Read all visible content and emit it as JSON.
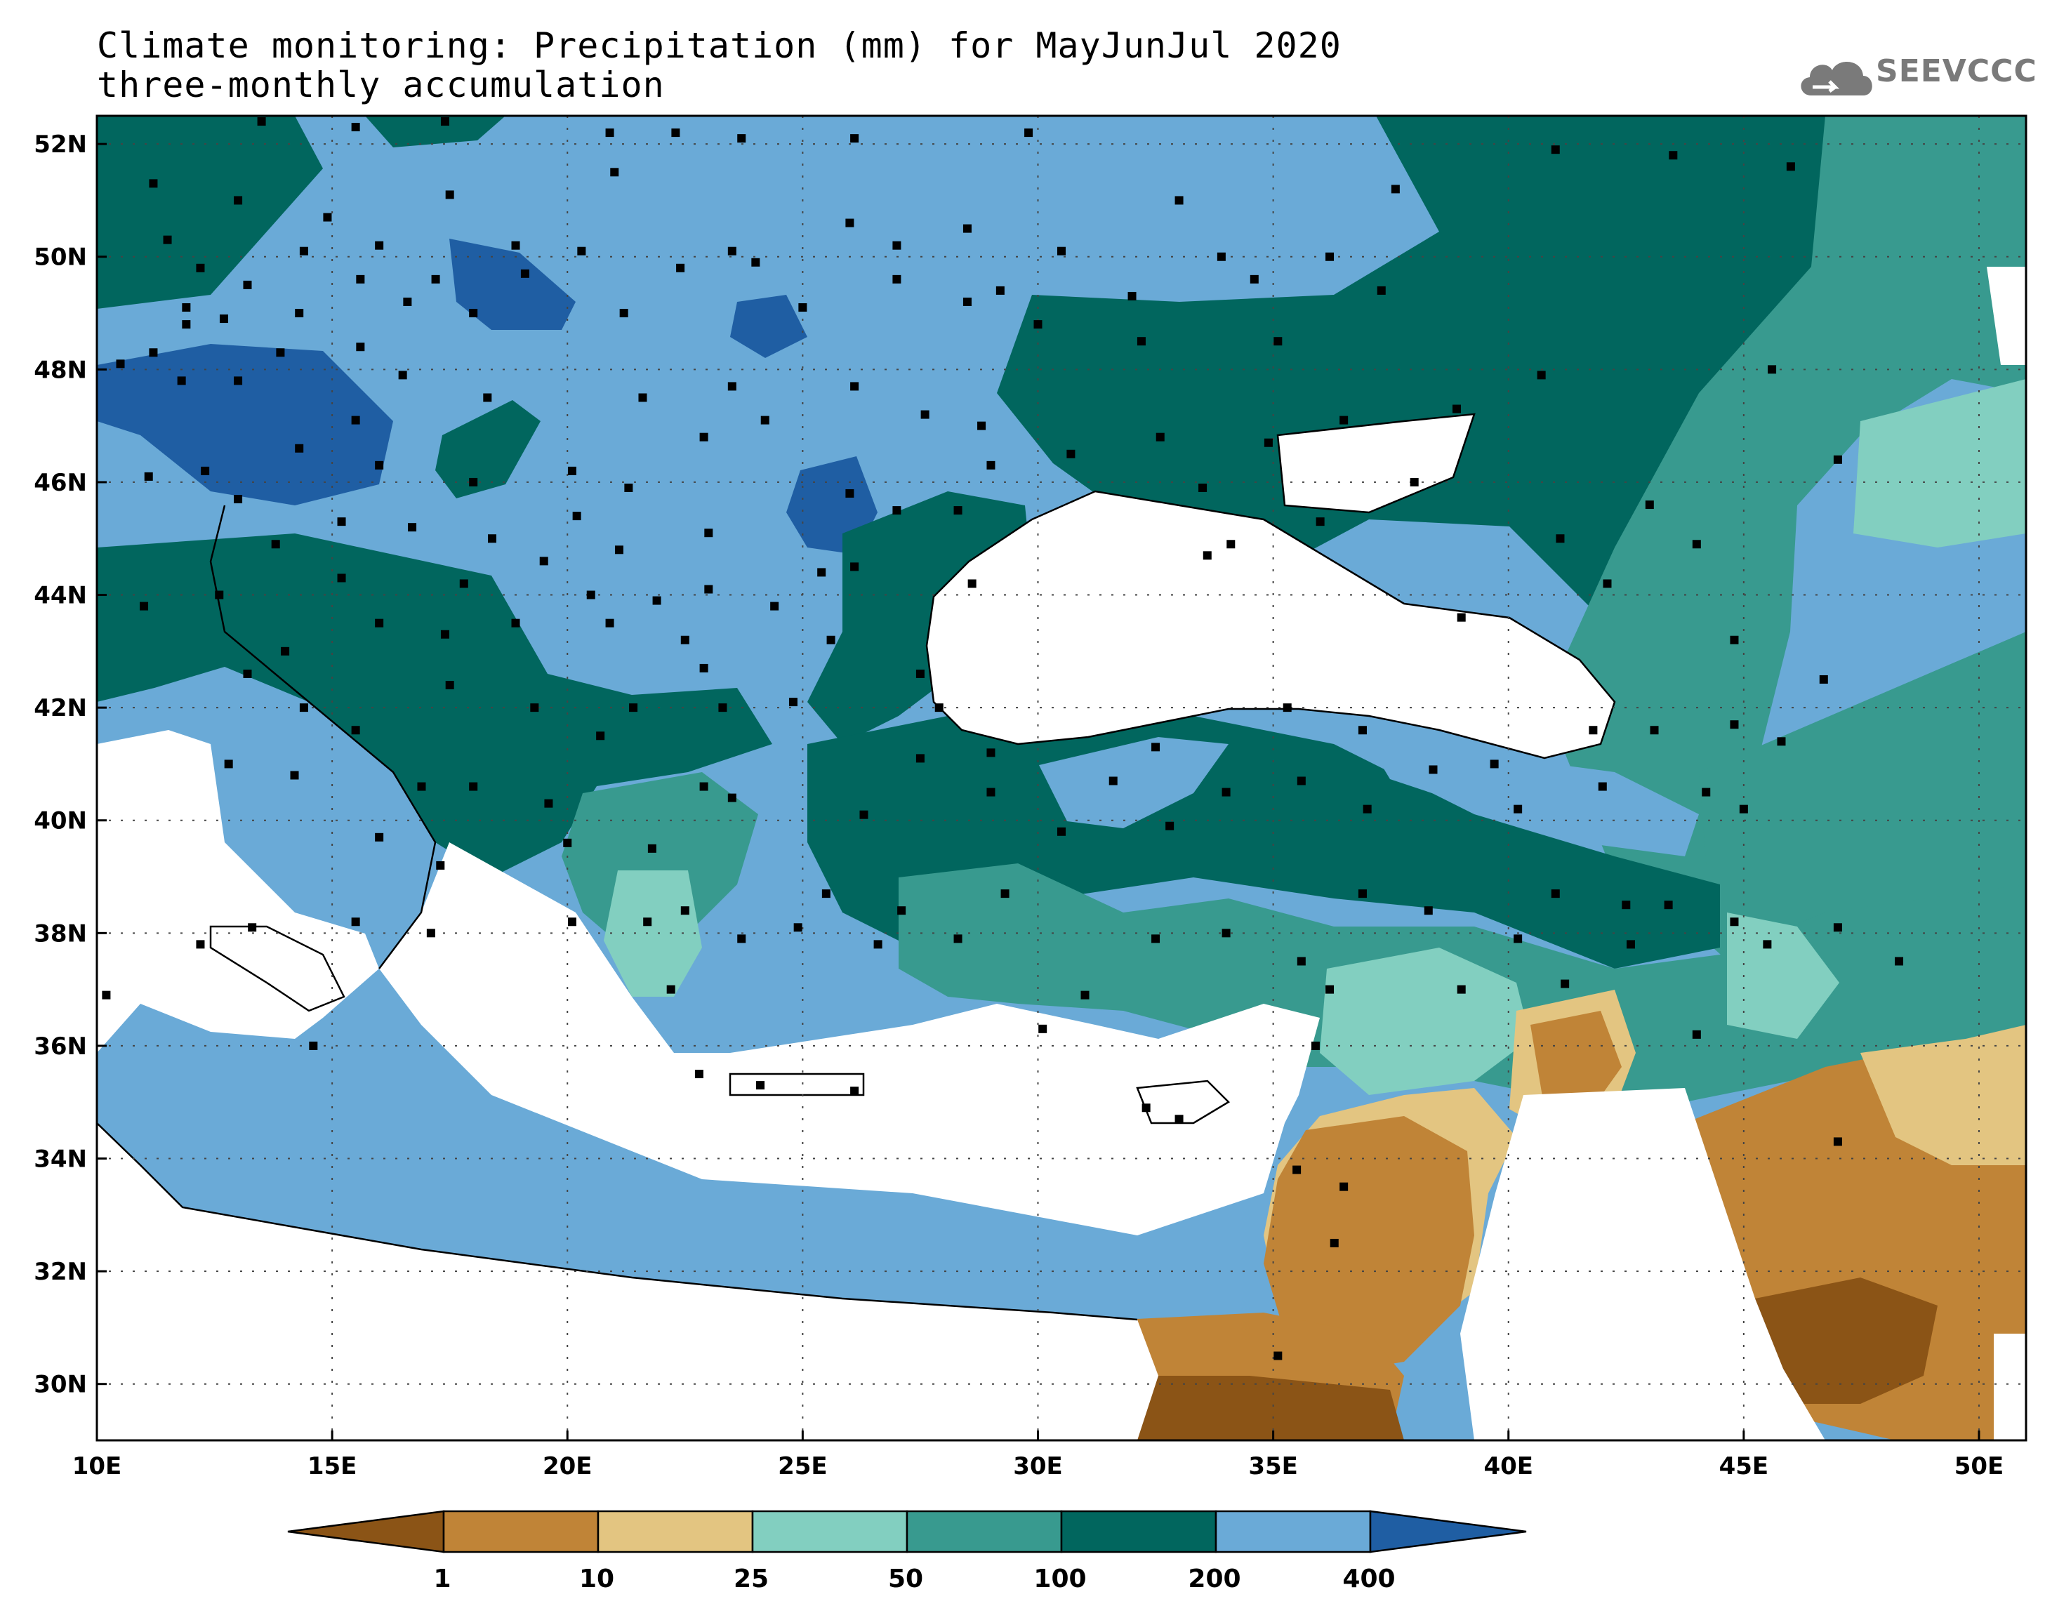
{
  "title_line1": "Climate monitoring: Precipitation (mm) for MayJunJul 2020",
  "title_line2": "three-monthly accumulation",
  "logo": {
    "text": "SEEVCCC",
    "icon": "cloud-icon"
  },
  "map": {
    "extent": {
      "lon": [
        10,
        51
      ],
      "lat": [
        29,
        52.5
      ]
    },
    "x_ticks": [
      {
        "value": 10,
        "label": "10E"
      },
      {
        "value": 15,
        "label": "15E"
      },
      {
        "value": 20,
        "label": "20E"
      },
      {
        "value": 25,
        "label": "25E"
      },
      {
        "value": 30,
        "label": "30E"
      },
      {
        "value": 35,
        "label": "35E"
      },
      {
        "value": 40,
        "label": "40E"
      },
      {
        "value": 45,
        "label": "45E"
      },
      {
        "value": 50,
        "label": "50E"
      }
    ],
    "y_ticks": [
      {
        "value": 30,
        "label": "30N"
      },
      {
        "value": 32,
        "label": "32N"
      },
      {
        "value": 34,
        "label": "34N"
      },
      {
        "value": 36,
        "label": "36N"
      },
      {
        "value": 38,
        "label": "38N"
      },
      {
        "value": 40,
        "label": "40N"
      },
      {
        "value": 42,
        "label": "42N"
      },
      {
        "value": 44,
        "label": "44N"
      },
      {
        "value": 46,
        "label": "46N"
      },
      {
        "value": 48,
        "label": "48N"
      },
      {
        "value": 50,
        "label": "50N"
      },
      {
        "value": 52,
        "label": "52N"
      }
    ],
    "grid": "dotted"
  },
  "colorbar": {
    "unit": "mm",
    "labels": [
      "1",
      "10",
      "25",
      "50",
      "100",
      "200",
      "400"
    ],
    "colors": [
      "#8b5416",
      "#c08437",
      "#e3c581",
      "#82cfc0",
      "#389a8f",
      "#01665e",
      "#6aaad7",
      "#1f5ea3"
    ]
  },
  "stations": [
    [
      13.5,
      52.4
    ],
    [
      15.5,
      52.3
    ],
    [
      17.4,
      52.4
    ],
    [
      20.9,
      52.2
    ],
    [
      22.3,
      52.2
    ],
    [
      23.7,
      52.1
    ],
    [
      26.1,
      52.1
    ],
    [
      29.8,
      52.2
    ],
    [
      11.2,
      51.3
    ],
    [
      13.0,
      51.0
    ],
    [
      14.9,
      50.7
    ],
    [
      17.5,
      51.1
    ],
    [
      21.0,
      51.5
    ],
    [
      26.0,
      50.6
    ],
    [
      27.0,
      50.2
    ],
    [
      33.0,
      51.0
    ],
    [
      37.6,
      51.2
    ],
    [
      41.0,
      51.9
    ],
    [
      43.5,
      51.8
    ],
    [
      46.0,
      51.6
    ],
    [
      11.5,
      50.3
    ],
    [
      14.4,
      50.1
    ],
    [
      16.0,
      50.2
    ],
    [
      18.9,
      50.2
    ],
    [
      20.3,
      50.1
    ],
    [
      23.5,
      50.1
    ],
    [
      28.5,
      50.5
    ],
    [
      30.5,
      50.1
    ],
    [
      33.9,
      50.0
    ],
    [
      36.2,
      50.0
    ],
    [
      12.2,
      49.8
    ],
    [
      13.2,
      49.5
    ],
    [
      15.6,
      49.6
    ],
    [
      17.2,
      49.6
    ],
    [
      19.1,
      49.7
    ],
    [
      22.4,
      49.8
    ],
    [
      24.0,
      49.9
    ],
    [
      27.0,
      49.6
    ],
    [
      29.2,
      49.4
    ],
    [
      32.0,
      49.3
    ],
    [
      34.6,
      49.6
    ],
    [
      37.3,
      49.4
    ],
    [
      11.9,
      49.1
    ],
    [
      12.7,
      48.9
    ],
    [
      14.3,
      49.0
    ],
    [
      16.6,
      49.2
    ],
    [
      18.0,
      49.0
    ],
    [
      21.2,
      49.0
    ],
    [
      25.0,
      49.1
    ],
    [
      28.5,
      49.2
    ],
    [
      30.0,
      48.8
    ],
    [
      32.2,
      48.5
    ],
    [
      35.1,
      48.5
    ],
    [
      13.9,
      48.3
    ],
    [
      15.6,
      48.4
    ],
    [
      11.8,
      47.8
    ],
    [
      13.0,
      47.8
    ],
    [
      15.5,
      47.1
    ],
    [
      16.5,
      47.9
    ],
    [
      18.3,
      47.5
    ],
    [
      21.6,
      47.5
    ],
    [
      26.1,
      47.7
    ],
    [
      23.5,
      47.7
    ],
    [
      24.2,
      47.1
    ],
    [
      27.6,
      47.2
    ],
    [
      28.8,
      47.0
    ],
    [
      30.7,
      46.5
    ],
    [
      32.6,
      46.8
    ],
    [
      34.9,
      46.7
    ],
    [
      36.5,
      47.1
    ],
    [
      38.9,
      47.3
    ],
    [
      40.7,
      47.9
    ],
    [
      45.6,
      48.0
    ],
    [
      11.1,
      46.1
    ],
    [
      12.3,
      46.2
    ],
    [
      14.3,
      46.6
    ],
    [
      16.0,
      46.3
    ],
    [
      18.0,
      46.0
    ],
    [
      20.1,
      46.2
    ],
    [
      21.3,
      45.9
    ],
    [
      22.9,
      46.8
    ],
    [
      26.0,
      45.8
    ],
    [
      28.3,
      45.5
    ],
    [
      29.0,
      46.3
    ],
    [
      33.5,
      45.9
    ],
    [
      34.1,
      44.9
    ],
    [
      36.0,
      45.3
    ],
    [
      38.0,
      46.0
    ],
    [
      41.1,
      45.0
    ],
    [
      43.0,
      45.6
    ],
    [
      47.0,
      46.4
    ],
    [
      44.0,
      44.9
    ],
    [
      13.0,
      45.7
    ],
    [
      15.2,
      45.3
    ],
    [
      16.7,
      45.2
    ],
    [
      18.4,
      45.0
    ],
    [
      20.2,
      45.4
    ],
    [
      21.1,
      44.8
    ],
    [
      23.0,
      45.1
    ],
    [
      25.4,
      44.4
    ],
    [
      26.1,
      44.5
    ],
    [
      27.0,
      45.5
    ],
    [
      28.6,
      44.2
    ],
    [
      13.8,
      44.9
    ],
    [
      15.2,
      44.3
    ],
    [
      17.8,
      44.2
    ],
    [
      19.5,
      44.6
    ],
    [
      20.5,
      44.0
    ],
    [
      21.9,
      43.9
    ],
    [
      23.0,
      44.1
    ],
    [
      24.4,
      43.8
    ],
    [
      27.5,
      42.6
    ],
    [
      33.6,
      44.7
    ],
    [
      39.0,
      43.6
    ],
    [
      42.1,
      44.2
    ],
    [
      44.8,
      43.2
    ],
    [
      46.7,
      42.5
    ],
    [
      11.0,
      43.8
    ],
    [
      12.6,
      44.0
    ],
    [
      14.0,
      43.0
    ],
    [
      16.0,
      43.5
    ],
    [
      17.4,
      43.3
    ],
    [
      18.9,
      43.5
    ],
    [
      20.9,
      43.5
    ],
    [
      22.5,
      43.2
    ],
    [
      25.6,
      43.2
    ],
    [
      13.2,
      42.6
    ],
    [
      14.4,
      42.0
    ],
    [
      15.5,
      41.6
    ],
    [
      17.5,
      42.4
    ],
    [
      19.3,
      42.0
    ],
    [
      20.7,
      41.5
    ],
    [
      21.4,
      42.0
    ],
    [
      22.9,
      42.7
    ],
    [
      23.3,
      42.0
    ],
    [
      24.8,
      42.1
    ],
    [
      27.9,
      42.0
    ],
    [
      29.0,
      41.2
    ],
    [
      32.5,
      41.3
    ],
    [
      35.3,
      42.0
    ],
    [
      36.9,
      41.6
    ],
    [
      39.7,
      41.0
    ],
    [
      41.8,
      41.6
    ],
    [
      43.1,
      41.6
    ],
    [
      44.8,
      41.7
    ],
    [
      45.8,
      41.4
    ],
    [
      12.8,
      41.0
    ],
    [
      14.2,
      40.8
    ],
    [
      16.9,
      40.6
    ],
    [
      18.0,
      40.6
    ],
    [
      19.6,
      40.3
    ],
    [
      22.9,
      40.6
    ],
    [
      23.5,
      40.4
    ],
    [
      26.3,
      40.1
    ],
    [
      27.5,
      41.1
    ],
    [
      29.0,
      40.5
    ],
    [
      31.6,
      40.7
    ],
    [
      34.0,
      40.5
    ],
    [
      35.6,
      40.7
    ],
    [
      37.0,
      40.2
    ],
    [
      38.4,
      40.9
    ],
    [
      40.2,
      40.2
    ],
    [
      42.0,
      40.6
    ],
    [
      44.2,
      40.5
    ],
    [
      45.0,
      40.2
    ],
    [
      16.0,
      39.7
    ],
    [
      17.3,
      39.2
    ],
    [
      20.0,
      39.6
    ],
    [
      21.8,
      39.5
    ],
    [
      22.5,
      38.4
    ],
    [
      24.9,
      38.1
    ],
    [
      26.6,
      37.8
    ],
    [
      27.1,
      38.4
    ],
    [
      29.3,
      38.7
    ],
    [
      30.5,
      39.8
    ],
    [
      32.8,
      39.9
    ],
    [
      36.9,
      38.7
    ],
    [
      38.3,
      38.4
    ],
    [
      40.2,
      37.9
    ],
    [
      41.0,
      38.7
    ],
    [
      42.5,
      38.5
    ],
    [
      43.4,
      38.5
    ],
    [
      44.8,
      38.2
    ],
    [
      12.2,
      37.8
    ],
    [
      13.3,
      38.1
    ],
    [
      15.5,
      38.2
    ],
    [
      17.1,
      38.0
    ],
    [
      20.1,
      38.2
    ],
    [
      21.7,
      38.2
    ],
    [
      22.2,
      37.0
    ],
    [
      23.7,
      37.9
    ],
    [
      25.5,
      38.7
    ],
    [
      28.3,
      37.9
    ],
    [
      31.0,
      36.9
    ],
    [
      32.5,
      37.9
    ],
    [
      34.0,
      38.0
    ],
    [
      35.6,
      37.5
    ],
    [
      36.2,
      37.0
    ],
    [
      39.0,
      37.0
    ],
    [
      41.2,
      37.1
    ],
    [
      42.6,
      37.8
    ],
    [
      44.0,
      36.2
    ],
    [
      45.5,
      37.8
    ],
    [
      47.0,
      38.1
    ],
    [
      48.3,
      37.5
    ],
    [
      10.2,
      36.9
    ],
    [
      14.6,
      36.0
    ],
    [
      22.8,
      35.5
    ],
    [
      24.1,
      35.3
    ],
    [
      26.1,
      35.2
    ],
    [
      30.1,
      36.3
    ],
    [
      32.3,
      34.9
    ],
    [
      33.0,
      34.7
    ],
    [
      35.9,
      36.0
    ],
    [
      36.5,
      33.5
    ],
    [
      35.5,
      33.8
    ],
    [
      36.3,
      32.5
    ],
    [
      35.1,
      30.5
    ],
    [
      47.0,
      34.3
    ],
    [
      11.2,
      48.3
    ],
    [
      11.9,
      48.8
    ],
    [
      10.5,
      48.1
    ]
  ]
}
